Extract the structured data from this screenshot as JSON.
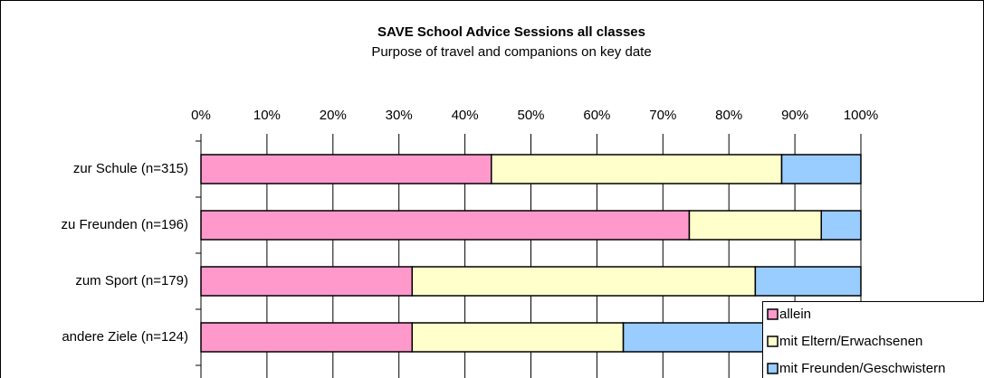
{
  "chart_data": {
    "type": "stacked_barh",
    "title": "SAVE School Advice Sessions all classes",
    "subtitle": "Purpose of travel and companions on key date",
    "categories": [
      "zur Schule (n=315)",
      "zu Freunden (n=196)",
      "zum Sport (n=179)",
      "andere Ziele (n=124)"
    ],
    "series": [
      {
        "name": "allein",
        "color": "#ff99cc",
        "values": [
          44,
          74,
          32,
          32
        ]
      },
      {
        "name": "mit Eltern/Erwachsenen",
        "color": "#ffffcc",
        "values": [
          44,
          20,
          52,
          32
        ]
      },
      {
        "name": "mit Freunden/Geschwistern",
        "color": "#99ccff",
        "values": [
          12,
          6,
          16,
          36
        ]
      }
    ],
    "xlim": [
      0,
      100
    ],
    "xticks": [
      {
        "value": 0,
        "label": "0%"
      },
      {
        "value": 10,
        "label": "10%"
      },
      {
        "value": 20,
        "label": "20%"
      },
      {
        "value": 30,
        "label": "30%"
      },
      {
        "value": 40,
        "label": "40%"
      },
      {
        "value": 50,
        "label": "50%"
      },
      {
        "value": 60,
        "label": "60%"
      },
      {
        "value": 70,
        "label": "70%"
      },
      {
        "value": 80,
        "label": "80%"
      },
      {
        "value": 90,
        "label": "90%"
      },
      {
        "value": 100,
        "label": "100%"
      }
    ],
    "grid": true,
    "legend": "lower right"
  }
}
